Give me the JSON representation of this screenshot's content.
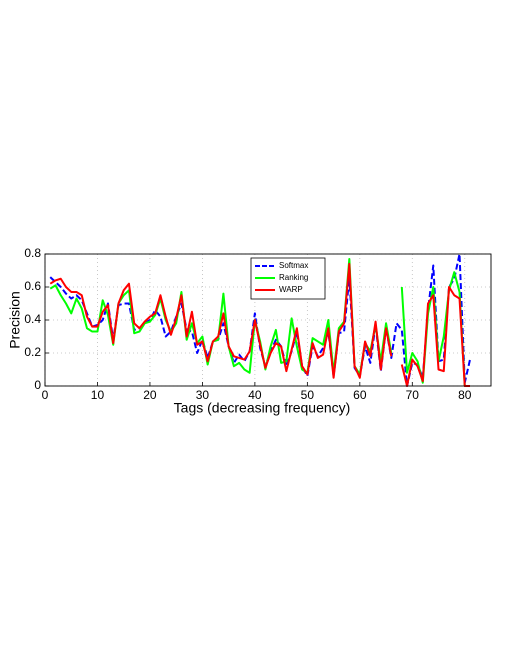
{
  "chart_data": {
    "type": "line",
    "xlabel": "Tags (decreasing frequency)",
    "ylabel": "Precision",
    "x": [
      1,
      2,
      3,
      4,
      5,
      6,
      7,
      8,
      9,
      10,
      11,
      12,
      13,
      14,
      15,
      16,
      17,
      18,
      19,
      20,
      21,
      22,
      23,
      24,
      25,
      26,
      27,
      28,
      29,
      30,
      31,
      32,
      33,
      34,
      35,
      36,
      37,
      38,
      39,
      40,
      41,
      42,
      43,
      44,
      45,
      46,
      47,
      48,
      49,
      50,
      51,
      52,
      53,
      54,
      55,
      56,
      57,
      58,
      59,
      60,
      61,
      62,
      63,
      64,
      65,
      66,
      67,
      68,
      69,
      70,
      71,
      72,
      73,
      74,
      75,
      76,
      77,
      78,
      79,
      80,
      81
    ],
    "series": [
      {
        "name": "Softmax",
        "color": "#0000ff",
        "style": "dashed",
        "values": [
          0.66,
          0.63,
          0.6,
          0.56,
          0.53,
          0.55,
          0.52,
          0.44,
          0.36,
          0.37,
          0.4,
          0.5,
          0.28,
          0.49,
          0.5,
          0.5,
          0.34,
          0.35,
          0.38,
          0.4,
          0.46,
          0.42,
          0.3,
          0.33,
          0.42,
          0.5,
          0.34,
          0.33,
          0.2,
          0.28,
          0.17,
          0.27,
          0.28,
          0.38,
          0.24,
          0.14,
          0.19,
          0.15,
          0.21,
          0.44,
          0.23,
          0.12,
          0.21,
          0.28,
          0.24,
          0.12,
          0.21,
          0.33,
          0.12,
          0.06,
          0.24,
          0.18,
          0.23,
          0.33,
          0.06,
          0.32,
          0.33,
          0.66,
          0.11,
          0.06,
          0.24,
          0.14,
          0.37,
          0.09,
          0.35,
          0.17,
          0.38,
          0.34,
          0.0,
          0.14,
          0.13,
          0.05,
          0.46,
          0.73,
          0.15,
          0.16,
          0.6,
          0.65,
          0.8,
          0.02,
          0.16
        ]
      },
      {
        "name": "Ranking",
        "color": "#00ff00",
        "style": "solid",
        "values": [
          0.59,
          0.61,
          0.55,
          0.5,
          0.44,
          0.53,
          0.47,
          0.35,
          0.33,
          0.33,
          0.52,
          0.43,
          0.25,
          0.5,
          0.55,
          0.58,
          0.32,
          0.33,
          0.38,
          0.39,
          0.43,
          0.53,
          0.4,
          0.33,
          0.38,
          0.57,
          0.28,
          0.38,
          0.26,
          0.3,
          0.13,
          0.27,
          0.28,
          0.56,
          0.24,
          0.12,
          0.14,
          0.1,
          0.08,
          0.4,
          0.27,
          0.1,
          0.24,
          0.34,
          0.14,
          0.15,
          0.41,
          0.24,
          0.1,
          0.08,
          0.29,
          0.27,
          0.25,
          0.4,
          0.08,
          0.35,
          0.39,
          0.77,
          0.12,
          0.07,
          0.26,
          0.21,
          0.37,
          0.15,
          0.38,
          0.2,
          null,
          0.6,
          0.08,
          0.2,
          0.15,
          0.02,
          0.44,
          0.6,
          0.15,
          0.3,
          0.58,
          0.69,
          0.57,
          0.0,
          0.0
        ]
      },
      {
        "name": "WARP",
        "color": "#ff0000",
        "style": "solid",
        "values": [
          0.62,
          0.64,
          0.65,
          0.6,
          0.57,
          0.57,
          0.55,
          0.42,
          0.36,
          0.36,
          0.45,
          0.49,
          0.26,
          0.5,
          0.58,
          0.62,
          0.38,
          0.35,
          0.39,
          0.42,
          0.44,
          0.55,
          0.42,
          0.31,
          0.41,
          0.55,
          0.3,
          0.45,
          0.25,
          0.27,
          0.15,
          0.27,
          0.3,
          0.44,
          0.24,
          0.18,
          0.17,
          0.16,
          0.21,
          0.4,
          0.25,
          0.11,
          0.2,
          0.26,
          0.24,
          0.09,
          0.22,
          0.35,
          0.12,
          0.07,
          0.26,
          0.17,
          0.19,
          0.35,
          0.05,
          0.33,
          0.38,
          0.74,
          0.12,
          0.05,
          0.27,
          0.18,
          0.39,
          0.1,
          0.35,
          0.18,
          null,
          0.13,
          0.0,
          0.16,
          0.12,
          0.03,
          0.5,
          0.55,
          0.1,
          0.09,
          0.6,
          0.55,
          0.53,
          0.0,
          0.0
        ]
      }
    ],
    "xlim": [
      0,
      85
    ],
    "xticks": [
      0,
      10,
      20,
      30,
      40,
      50,
      60,
      70,
      80
    ],
    "ylim": [
      0,
      0.8
    ],
    "yticks": [
      0,
      0.2,
      0.4,
      0.6,
      0.8
    ],
    "grid": true,
    "legend": "top-center"
  }
}
